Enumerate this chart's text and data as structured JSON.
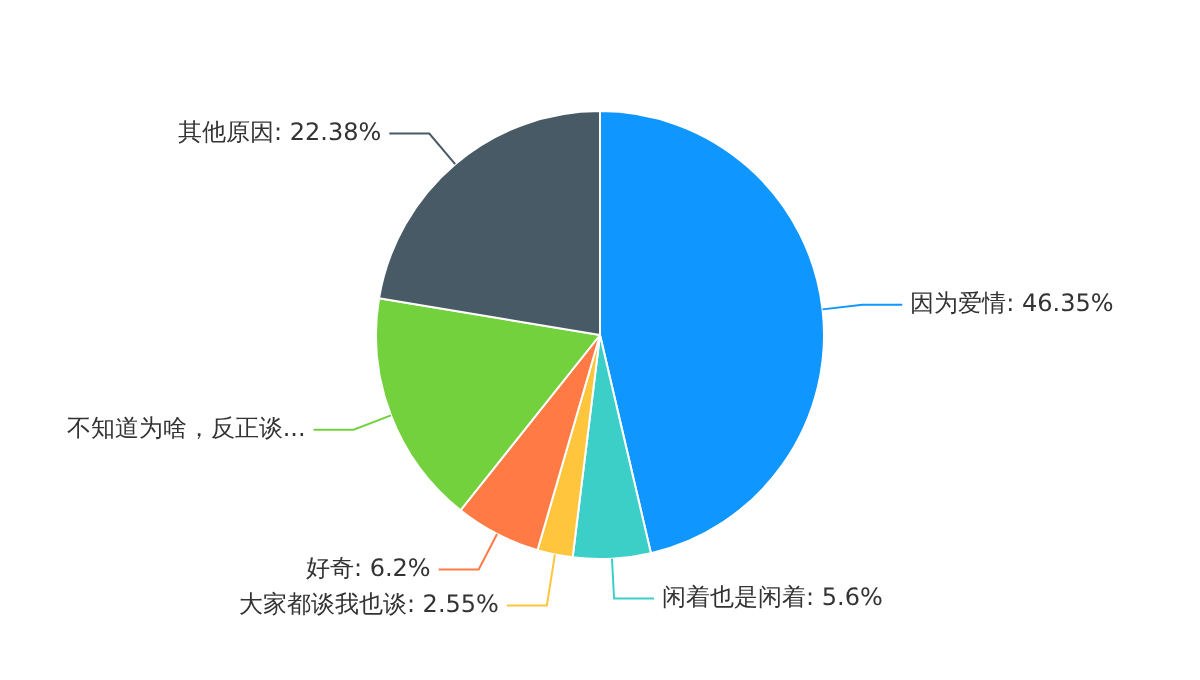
{
  "chart_data": {
    "type": "pie",
    "categories": [
      "因为爱情",
      "闲着也是闲着",
      "大家都谈我也谈",
      "好奇",
      "不知道为啥，反正谈...",
      "其他原因"
    ],
    "values": [
      46.35,
      5.6,
      2.55,
      6.2,
      16.92,
      22.38
    ],
    "value_labels": [
      "46.35%",
      "5.6%",
      "2.55%",
      "6.2%",
      null,
      "22.38%"
    ],
    "colors": [
      "#0f96ff",
      "#3ccfc8",
      "#ffc53d",
      "#ff7a45",
      "#73d13d",
      "#475a66"
    ]
  }
}
